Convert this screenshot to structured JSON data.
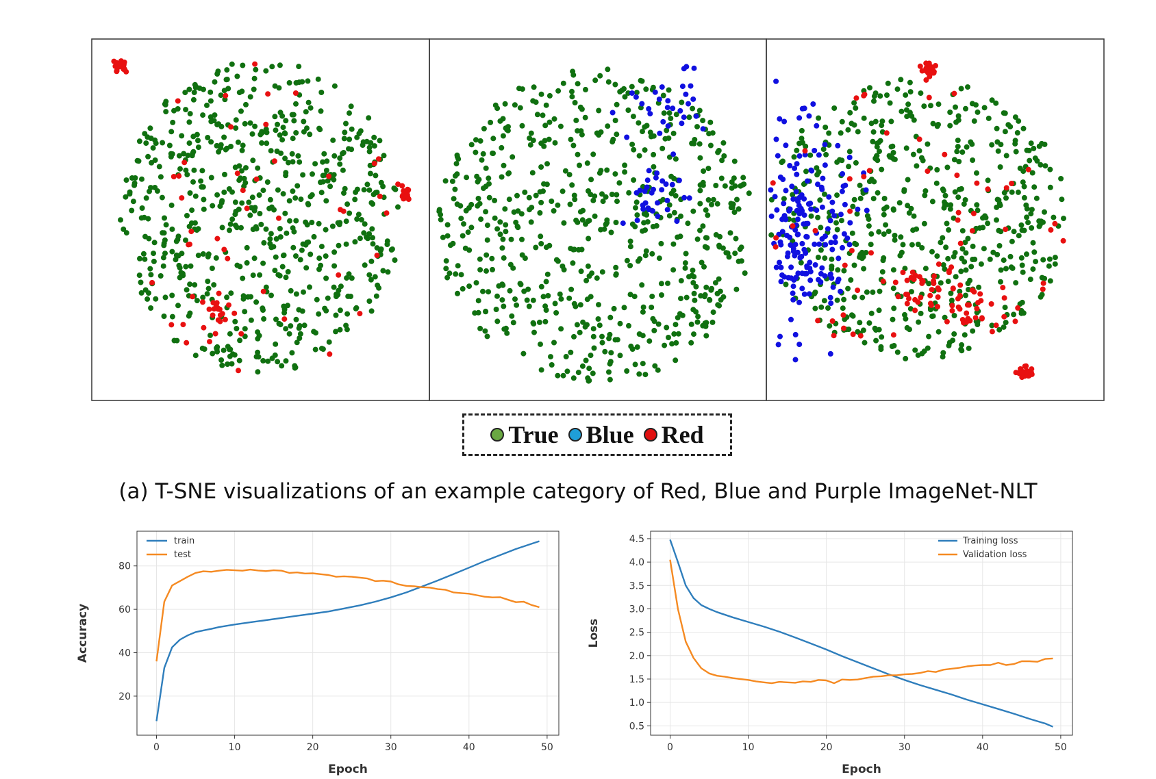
{
  "figure": {
    "caption": "(a) T-SNE visualizations of an example  category of Red, Blue and Purple ImageNet-NLT",
    "legend": [
      {
        "label": "True",
        "color": "#6aa842"
      },
      {
        "label": "Blue",
        "color": "#1f9fd8"
      },
      {
        "label": "Red",
        "color": "#e01010"
      }
    ]
  },
  "chart_data": [
    {
      "type": "scatter",
      "panels": 3,
      "series_colors": {
        "True": "#107010",
        "Blue": "#1010e0",
        "Red": "#e81010"
      },
      "panel_composition": [
        {
          "True": 650,
          "Blue": 0,
          "Red": 130
        },
        {
          "True": 640,
          "Blue": 60,
          "Red": 0
        },
        {
          "True": 560,
          "Blue": 190,
          "Red": 180
        }
      ]
    },
    {
      "type": "line",
      "xlabel": "Epoch",
      "ylabel": "Accuracy",
      "xlim": [
        -2.5,
        51.5
      ],
      "ylim": [
        2,
        96
      ],
      "xticks": [
        0,
        10,
        20,
        30,
        40,
        50
      ],
      "yticks": [
        20,
        40,
        60,
        80
      ],
      "legend_position": "top-left",
      "series": [
        {
          "name": "train",
          "color": "#2f7ebc",
          "x": [
            0,
            1,
            2,
            3,
            4,
            5,
            6,
            7,
            8,
            9,
            10,
            12,
            14,
            16,
            18,
            20,
            22,
            24,
            26,
            28,
            30,
            32,
            34,
            36,
            38,
            40,
            42,
            44,
            46,
            48,
            49
          ],
          "y": [
            8.5,
            33,
            42.5,
            46,
            48,
            49.5,
            50.3,
            51,
            51.8,
            52.4,
            53,
            54,
            55,
            56,
            57,
            58,
            59,
            60.4,
            61.8,
            63.5,
            65.5,
            67.8,
            70.5,
            73.3,
            76.2,
            79.2,
            82.2,
            85,
            87.8,
            90.2,
            91.4
          ]
        },
        {
          "name": "test",
          "color": "#f58a22",
          "x": [
            0,
            1,
            2,
            3,
            4,
            5,
            6,
            7,
            8,
            9,
            10,
            11,
            12,
            13,
            14,
            15,
            16,
            17,
            18,
            19,
            20,
            21,
            22,
            23,
            24,
            25,
            26,
            27,
            28,
            29,
            30,
            31,
            32,
            33,
            34,
            35,
            36,
            37,
            38,
            39,
            40,
            41,
            42,
            43,
            44,
            45,
            46,
            47,
            48,
            49
          ],
          "y": [
            36,
            63.5,
            71,
            73,
            75,
            76.8,
            77.5,
            77.3,
            77.8,
            78.2,
            78,
            77.8,
            78.3,
            77.9,
            77.6,
            78,
            77.8,
            76.8,
            77,
            76.5,
            76.6,
            76.2,
            75.8,
            75,
            75.2,
            75,
            74.6,
            74.2,
            73,
            73.2,
            72.8,
            71.5,
            70.8,
            70.6,
            70.2,
            70,
            69.3,
            69,
            67.8,
            67.5,
            67.2,
            66.5,
            65.8,
            65.5,
            65.6,
            64.4,
            63.3,
            63.5,
            62,
            61
          ]
        }
      ]
    },
    {
      "type": "line",
      "xlabel": "Epoch",
      "ylabel": "Loss",
      "xlim": [
        -2.5,
        51.5
      ],
      "ylim": [
        0.3,
        4.66
      ],
      "xticks": [
        0,
        10,
        20,
        30,
        40,
        50
      ],
      "yticks": [
        0.5,
        1.0,
        1.5,
        2.0,
        2.5,
        3.0,
        3.5,
        4.0,
        4.5
      ],
      "ytick_labels": [
        "0.5",
        "1.0",
        "1.5",
        "2.0",
        "2.5",
        "3.0",
        "3.5",
        "4.0",
        "4.5"
      ],
      "legend_position": "top-right",
      "series": [
        {
          "name": "Training loss",
          "color": "#2f7ebc",
          "x": [
            0,
            1,
            2,
            3,
            4,
            5,
            6,
            8,
            10,
            12,
            14,
            16,
            18,
            20,
            22,
            24,
            26,
            28,
            30,
            32,
            34,
            36,
            38,
            40,
            42,
            44,
            46,
            48,
            49
          ],
          "y": [
            4.48,
            4.0,
            3.5,
            3.23,
            3.08,
            3.0,
            2.93,
            2.82,
            2.72,
            2.62,
            2.51,
            2.39,
            2.26,
            2.13,
            1.99,
            1.86,
            1.73,
            1.6,
            1.48,
            1.37,
            1.27,
            1.17,
            1.06,
            0.96,
            0.86,
            0.76,
            0.65,
            0.55,
            0.48
          ]
        },
        {
          "name": "Validation loss",
          "color": "#f58a22",
          "x": [
            0,
            1,
            2,
            3,
            4,
            5,
            6,
            7,
            8,
            9,
            10,
            11,
            12,
            13,
            14,
            15,
            16,
            17,
            18,
            19,
            20,
            21,
            22,
            23,
            24,
            25,
            26,
            27,
            28,
            29,
            30,
            31,
            32,
            33,
            34,
            35,
            36,
            37,
            38,
            39,
            40,
            41,
            42,
            43,
            44,
            45,
            46,
            47,
            48,
            49
          ],
          "y": [
            4.05,
            3.0,
            2.3,
            1.95,
            1.73,
            1.62,
            1.57,
            1.55,
            1.52,
            1.5,
            1.48,
            1.45,
            1.43,
            1.41,
            1.44,
            1.43,
            1.42,
            1.45,
            1.44,
            1.48,
            1.47,
            1.41,
            1.49,
            1.48,
            1.49,
            1.52,
            1.55,
            1.56,
            1.58,
            1.58,
            1.6,
            1.61,
            1.63,
            1.67,
            1.65,
            1.7,
            1.72,
            1.74,
            1.77,
            1.79,
            1.8,
            1.8,
            1.85,
            1.8,
            1.82,
            1.88,
            1.88,
            1.87,
            1.93,
            1.94
          ]
        }
      ]
    }
  ]
}
